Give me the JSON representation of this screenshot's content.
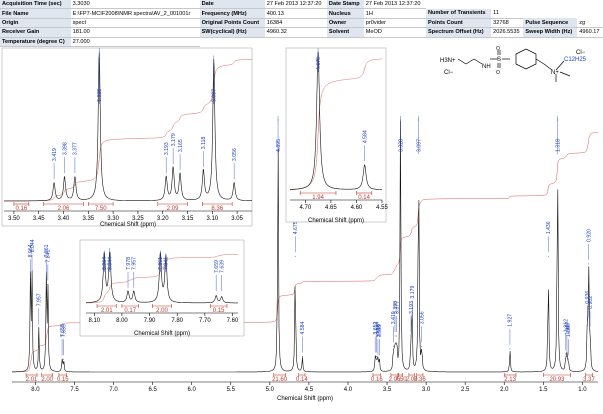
{
  "header": {
    "rows": [
      [
        {
          "k": "Acquisition Time (sec)",
          "v": "3.3030"
        },
        {
          "k": "Date",
          "v": "27 Feb 2013 12:37:20"
        },
        {
          "k": "Date Stamp",
          "v": "27 Feb 2013 12:37:20"
        }
      ],
      [
        {
          "k": "File Name",
          "v": "E:\\FP7-MCIF2008\\NMR spectra\\AV_2_001001r"
        },
        {
          "k": "Frequency (MHz)",
          "v": "400.13"
        },
        {
          "k": "Nucleus",
          "v": "1H"
        },
        {
          "k": "Number of Transients",
          "v": "11"
        }
      ],
      [
        {
          "k": "Origin",
          "v": "spect"
        },
        {
          "k": "Original Points Count",
          "v": "16384"
        },
        {
          "k": "Owner",
          "v": "pr0vider"
        },
        {
          "k": "Points Count",
          "v": "32768"
        },
        {
          "k": "Pulse Sequence",
          "v": "zg"
        }
      ],
      [
        {
          "k": "Receiver Gain",
          "v": "181.00"
        },
        {
          "k": "SW(cyclical) (Hz)",
          "v": "4960.32"
        },
        {
          "k": "Solvent",
          "v": "MeOD"
        },
        {
          "k": "Spectrum Offset (Hz)",
          "v": "2026.5535"
        },
        {
          "k": "Sweep Width (Hz)",
          "v": "4960.17"
        }
      ],
      [
        {
          "k": "Temperature (degree C)",
          "v": "27.000"
        }
      ]
    ]
  },
  "molecule": {
    "labels": [
      "H3N+",
      "Cl−",
      "NH",
      "S",
      "O",
      "O",
      "Cl−",
      "N+",
      "C12H25"
    ]
  },
  "chart_data": [
    {
      "type": "line",
      "name_id": "main-spectrum",
      "xlabel": "Chemical Shift (ppm)",
      "xlim": [
        8.3,
        0.8
      ],
      "xticks": [
        8.0,
        7.5,
        7.0,
        6.5,
        6.0,
        5.5,
        5.0,
        4.5,
        4.0,
        3.5,
        3.0,
        2.5,
        2.0,
        1.5,
        1.0
      ],
      "peaks": [
        {
          "x": 8.064,
          "h": 0.36
        },
        {
          "x": 8.044,
          "h": 0.38
        },
        {
          "x": 7.957,
          "h": 0.17
        },
        {
          "x": 7.861,
          "h": 0.36
        },
        {
          "x": 7.841,
          "h": 0.34
        },
        {
          "x": 7.659,
          "h": 0.05
        },
        {
          "x": 7.639,
          "h": 0.05
        },
        {
          "x": 4.895,
          "h": 0.98
        },
        {
          "x": 4.675,
          "h": 0.45
        },
        {
          "x": 4.584,
          "h": 0.06
        },
        {
          "x": 3.652,
          "h": 0.06
        },
        {
          "x": 3.634,
          "h": 0.06
        },
        {
          "x": 3.616,
          "h": 0.05
        },
        {
          "x": 3.599,
          "h": 0.05
        },
        {
          "x": 3.419,
          "h": 0.1
        },
        {
          "x": 3.398,
          "h": 0.14
        },
        {
          "x": 3.377,
          "h": 0.14
        },
        {
          "x": 3.328,
          "h": 0.98
        },
        {
          "x": 3.193,
          "h": 0.14
        },
        {
          "x": 3.179,
          "h": 0.2
        },
        {
          "x": 3.097,
          "h": 0.98
        },
        {
          "x": 3.056,
          "h": 0.1
        },
        {
          "x": 1.927,
          "h": 0.09
        },
        {
          "x": 1.436,
          "h": 0.45
        },
        {
          "x": 1.318,
          "h": 0.98
        },
        {
          "x": 1.212,
          "h": 0.07
        },
        {
          "x": 1.197,
          "h": 0.06
        },
        {
          "x": 1.18,
          "h": 0.05
        },
        {
          "x": 0.936,
          "h": 0.18
        },
        {
          "x": 0.92,
          "h": 0.42
        },
        {
          "x": 0.902,
          "h": 0.16
        }
      ],
      "peak_labels": [
        {
          "x": 8.064,
          "t": "8.064"
        },
        {
          "x": 8.044,
          "t": "8.044"
        },
        {
          "x": 7.957,
          "t": "7.957"
        },
        {
          "x": 7.861,
          "t": "7.861"
        },
        {
          "x": 7.841,
          "t": "7.841"
        },
        {
          "x": 7.659,
          "t": "7.659"
        },
        {
          "x": 7.639,
          "t": "7.639"
        },
        {
          "x": 4.895,
          "t": "4.895"
        },
        {
          "x": 4.675,
          "t": "4.675"
        },
        {
          "x": 4.584,
          "t": "4.584"
        },
        {
          "x": 3.652,
          "t": "3.652"
        },
        {
          "x": 3.634,
          "t": "3.634"
        },
        {
          "x": 3.616,
          "t": "3.616"
        },
        {
          "x": 3.599,
          "t": "3.599"
        },
        {
          "x": 3.419,
          "t": "3.419"
        },
        {
          "x": 3.398,
          "t": "3.398"
        },
        {
          "x": 3.377,
          "t": "3.377"
        },
        {
          "x": 3.328,
          "t": "3.328"
        },
        {
          "x": 3.193,
          "t": "3.193"
        },
        {
          "x": 3.179,
          "t": "3.179"
        },
        {
          "x": 3.097,
          "t": "3.097"
        },
        {
          "x": 3.056,
          "t": "3.056"
        },
        {
          "x": 1.927,
          "t": "1.927"
        },
        {
          "x": 1.436,
          "t": "1.436"
        },
        {
          "x": 1.318,
          "t": "1.318"
        },
        {
          "x": 1.212,
          "t": "1.212"
        },
        {
          "x": 1.197,
          "t": "1.197"
        },
        {
          "x": 1.18,
          "t": "1.180"
        },
        {
          "x": 0.936,
          "t": "0.936"
        },
        {
          "x": 0.92,
          "t": "0.920"
        },
        {
          "x": 0.902,
          "t": "0.902"
        }
      ],
      "integrals": [
        {
          "from": 8.12,
          "to": 7.98,
          "t": "2.01"
        },
        {
          "from": 7.92,
          "to": 7.78,
          "t": "2.00"
        },
        {
          "from": 7.7,
          "to": 7.6,
          "t": "0.15"
        },
        {
          "from": 4.95,
          "to": 4.8,
          "t": "21.60"
        },
        {
          "from": 4.63,
          "to": 4.55,
          "t": "0.14"
        },
        {
          "from": 3.68,
          "to": 3.58,
          "t": "0.16"
        },
        {
          "from": 3.45,
          "to": 3.36,
          "t": "2.06"
        },
        {
          "from": 3.35,
          "to": 3.3,
          "t": "7.50"
        },
        {
          "from": 3.22,
          "to": 3.15,
          "t": "2.09"
        },
        {
          "from": 3.12,
          "to": 3.04,
          "t": "8.36"
        },
        {
          "from": 2.0,
          "to": 1.85,
          "t": "2.13"
        },
        {
          "from": 1.5,
          "to": 1.15,
          "t": "20.93"
        },
        {
          "from": 0.96,
          "to": 0.87,
          "t": "3.37"
        }
      ]
    },
    {
      "type": "line",
      "name_id": "inset-3ppm",
      "xlabel": "Chemical Shift (ppm)",
      "xlim": [
        3.52,
        3.02
      ],
      "xticks": [
        3.5,
        3.45,
        3.4,
        3.35,
        3.3,
        3.25,
        3.2,
        3.15,
        3.1,
        3.05
      ],
      "peaks": [
        {
          "x": 3.419,
          "h": 0.12
        },
        {
          "x": 3.398,
          "h": 0.16
        },
        {
          "x": 3.377,
          "h": 0.16
        },
        {
          "x": 3.328,
          "h": 1.0
        },
        {
          "x": 3.193,
          "h": 0.16
        },
        {
          "x": 3.179,
          "h": 0.22
        },
        {
          "x": 3.165,
          "h": 0.18
        },
        {
          "x": 3.118,
          "h": 0.2
        },
        {
          "x": 3.097,
          "h": 0.95
        },
        {
          "x": 3.056,
          "h": 0.12
        }
      ],
      "peak_labels": [
        {
          "x": 3.419,
          "t": "3.419"
        },
        {
          "x": 3.398,
          "t": "3.398"
        },
        {
          "x": 3.377,
          "t": "3.377"
        },
        {
          "x": 3.328,
          "t": "3.328"
        },
        {
          "x": 3.193,
          "t": "3.193"
        },
        {
          "x": 3.179,
          "t": "3.179"
        },
        {
          "x": 3.165,
          "t": "3.165"
        },
        {
          "x": 3.118,
          "t": "3.118"
        },
        {
          "x": 3.097,
          "t": "3.097"
        },
        {
          "x": 3.056,
          "t": "3.056"
        }
      ],
      "integrals": [
        {
          "from": 3.5,
          "to": 3.47,
          "t": "0.16"
        },
        {
          "from": 3.44,
          "to": 3.36,
          "t": "2.06"
        },
        {
          "from": 3.35,
          "to": 3.3,
          "t": "7.50"
        },
        {
          "from": 3.21,
          "to": 3.15,
          "t": "2.09"
        },
        {
          "from": 3.12,
          "to": 3.06,
          "t": "8.36"
        }
      ]
    },
    {
      "type": "line",
      "name_id": "inset-4_6ppm",
      "xlabel": "Chemical Shift (ppm)",
      "xlim": [
        4.73,
        4.55
      ],
      "xticks": [
        4.7,
        4.65,
        4.6,
        4.55
      ],
      "peaks": [
        {
          "x": 4.675,
          "h": 1.0
        },
        {
          "x": 4.584,
          "h": 0.18
        }
      ],
      "peak_labels": [
        {
          "x": 4.675,
          "t": "4.675"
        },
        {
          "x": 4.584,
          "t": "4.584"
        }
      ],
      "integrals": [
        {
          "from": 4.71,
          "to": 4.64,
          "t": "1.94"
        },
        {
          "from": 4.6,
          "to": 4.57,
          "t": "0.14"
        }
      ]
    },
    {
      "type": "line",
      "name_id": "inset-aromatic",
      "xlabel": "Chemical Shift (ppm)",
      "xlim": [
        8.13,
        7.58
      ],
      "xticks": [
        8.1,
        8.0,
        7.9,
        7.8,
        7.7,
        7.6
      ],
      "peaks": [
        {
          "x": 8.064,
          "h": 0.95
        },
        {
          "x": 8.044,
          "h": 1.0
        },
        {
          "x": 7.978,
          "h": 0.22
        },
        {
          "x": 7.957,
          "h": 0.22
        },
        {
          "x": 7.861,
          "h": 0.95
        },
        {
          "x": 7.841,
          "h": 0.9
        },
        {
          "x": 7.659,
          "h": 0.14
        },
        {
          "x": 7.639,
          "h": 0.12
        }
      ],
      "peak_labels": [
        {
          "x": 8.064,
          "t": "8.064"
        },
        {
          "x": 8.044,
          "t": "8.044"
        },
        {
          "x": 7.978,
          "t": "7.978"
        },
        {
          "x": 7.957,
          "t": "7.957"
        },
        {
          "x": 7.861,
          "t": "7.861"
        },
        {
          "x": 7.841,
          "t": "7.841"
        },
        {
          "x": 7.659,
          "t": "7.659"
        },
        {
          "x": 7.639,
          "t": "7.639"
        }
      ],
      "integrals": [
        {
          "from": 8.09,
          "to": 8.02,
          "t": "2.01"
        },
        {
          "from": 8.0,
          "to": 7.94,
          "t": "0.17"
        },
        {
          "from": 7.89,
          "to": 7.82,
          "t": "2.00"
        },
        {
          "from": 7.68,
          "to": 7.62,
          "t": "0.15"
        }
      ]
    }
  ]
}
